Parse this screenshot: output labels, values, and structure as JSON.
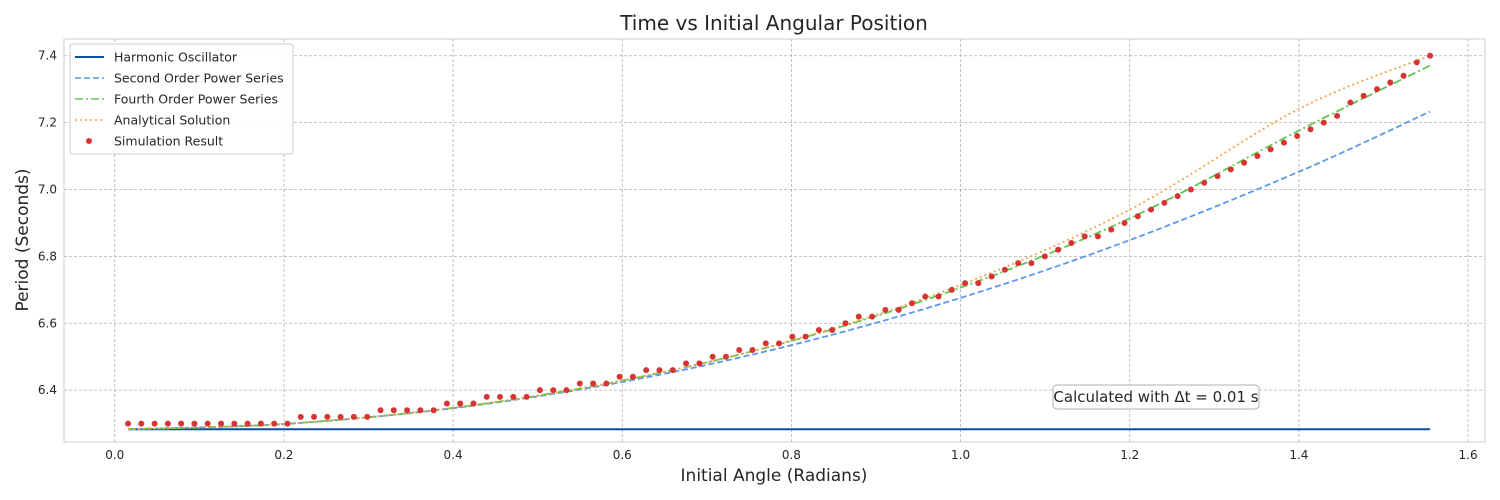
{
  "chart_data": {
    "type": "line",
    "title": "Time vs Initial Angular Position",
    "xlabel": "Initial Angle (Radians)",
    "ylabel": "Period (Seconds)",
    "xlim": [
      -0.06,
      1.62
    ],
    "ylim": [
      6.245,
      7.45
    ],
    "xticks": [
      0.0,
      0.2,
      0.4,
      0.6,
      0.8,
      1.0,
      1.2,
      1.4,
      1.6
    ],
    "yticks": [
      6.4,
      6.6,
      6.8,
      7.0,
      7.2,
      7.4
    ],
    "xtick_labels": [
      "0.0",
      "0.2",
      "0.4",
      "0.6",
      "0.8",
      "1.0",
      "1.2",
      "1.4",
      "1.6"
    ],
    "ytick_labels": [
      "6.4",
      "6.6",
      "6.8",
      "7.0",
      "7.2",
      "7.4"
    ],
    "grid": true,
    "legend_position": "top-left",
    "annotation": "Calculated with Δt = 0.01 s",
    "series": [
      {
        "name": "Harmonic Oscillator",
        "style": "solid",
        "color": "#0a4f9c",
        "x": [
          0.0157,
          1.5551
        ],
        "y": [
          6.2832,
          6.2832
        ]
      },
      {
        "name": "Second Order Power Series",
        "style": "dashed",
        "color": "#5a9ae8",
        "x": [
          0.0157,
          0.2,
          0.4,
          0.6,
          0.8,
          1.0,
          1.2,
          1.4,
          1.5551
        ],
        "y": [
          6.2833,
          6.2989,
          6.346,
          6.4245,
          6.5345,
          6.6759,
          6.8487,
          7.0531,
          7.2331
        ]
      },
      {
        "name": "Fourth Order Power Series",
        "style": "dashdot",
        "color": "#5cc94e",
        "x": [
          0.0157,
          0.2,
          0.4,
          0.6,
          0.8,
          1.0,
          1.2,
          1.4,
          1.5551
        ],
        "y": [
          6.2833,
          6.2989,
          6.347,
          6.4288,
          6.5472,
          6.7067,
          6.9137,
          7.1763,
          7.3707
        ]
      },
      {
        "name": "Analytical Solution",
        "style": "dotted",
        "color": "#f5a14a",
        "x": [
          0.0157,
          0.2,
          0.4,
          0.6,
          0.8,
          1.0,
          1.2,
          1.4,
          1.5551
        ],
        "y": [
          6.2833,
          6.2989,
          6.3473,
          6.4284,
          6.5482,
          6.7146,
          6.9397,
          7.2409,
          7.4
        ]
      },
      {
        "name": "Simulation Result",
        "style": "scatter",
        "color": "#d93434",
        "x": [
          0.0157,
          0.0314,
          0.0471,
          0.0628,
          0.0785,
          0.0942,
          0.1099,
          0.1257,
          0.1414,
          0.1571,
          0.1728,
          0.1885,
          0.2042,
          0.2199,
          0.2356,
          0.2513,
          0.267,
          0.2827,
          0.2985,
          0.3142,
          0.3299,
          0.3456,
          0.3613,
          0.377,
          0.3927,
          0.4084,
          0.4241,
          0.4398,
          0.4555,
          0.4712,
          0.4869,
          0.5027,
          0.5184,
          0.5341,
          0.5498,
          0.5655,
          0.5812,
          0.5969,
          0.6126,
          0.6283,
          0.644,
          0.6597,
          0.6754,
          0.6912,
          0.7069,
          0.7226,
          0.7383,
          0.754,
          0.7697,
          0.7854,
          0.8011,
          0.8168,
          0.8325,
          0.8482,
          0.8639,
          0.8796,
          0.8954,
          0.9111,
          0.9268,
          0.9425,
          0.9582,
          0.9739,
          0.9896,
          1.0053,
          1.021,
          1.0367,
          1.0524,
          1.0681,
          1.0838,
          1.0996,
          1.1153,
          1.131,
          1.1467,
          1.1624,
          1.1781,
          1.1938,
          1.2095,
          1.2252,
          1.2409,
          1.2566,
          1.2723,
          1.2881,
          1.3038,
          1.3195,
          1.3352,
          1.3509,
          1.3666,
          1.3823,
          1.398,
          1.4137,
          1.4294,
          1.4451,
          1.4608,
          1.4765,
          1.4923,
          1.508,
          1.5237,
          1.5394,
          1.5551
        ],
        "y": [
          6.3,
          6.3,
          6.3,
          6.3,
          6.3,
          6.3,
          6.3,
          6.3,
          6.3,
          6.3,
          6.3,
          6.3,
          6.3,
          6.32,
          6.32,
          6.32,
          6.32,
          6.32,
          6.32,
          6.34,
          6.34,
          6.34,
          6.34,
          6.34,
          6.36,
          6.36,
          6.36,
          6.38,
          6.38,
          6.38,
          6.38,
          6.4,
          6.4,
          6.4,
          6.42,
          6.42,
          6.42,
          6.44,
          6.44,
          6.46,
          6.46,
          6.46,
          6.48,
          6.48,
          6.5,
          6.5,
          6.52,
          6.52,
          6.54,
          6.54,
          6.56,
          6.56,
          6.58,
          6.58,
          6.6,
          6.62,
          6.62,
          6.64,
          6.64,
          6.66,
          6.68,
          6.68,
          6.7,
          6.72,
          6.72,
          6.74,
          6.76,
          6.78,
          6.78,
          6.8,
          6.82,
          6.84,
          6.86,
          6.86,
          6.88,
          6.9,
          6.92,
          6.94,
          6.96,
          6.98,
          7.0,
          7.02,
          7.04,
          7.06,
          7.08,
          7.1,
          7.12,
          7.14,
          7.16,
          7.18,
          7.2,
          7.22,
          7.26,
          7.28,
          7.3,
          7.32,
          7.34,
          7.38,
          7.4
        ]
      }
    ]
  }
}
